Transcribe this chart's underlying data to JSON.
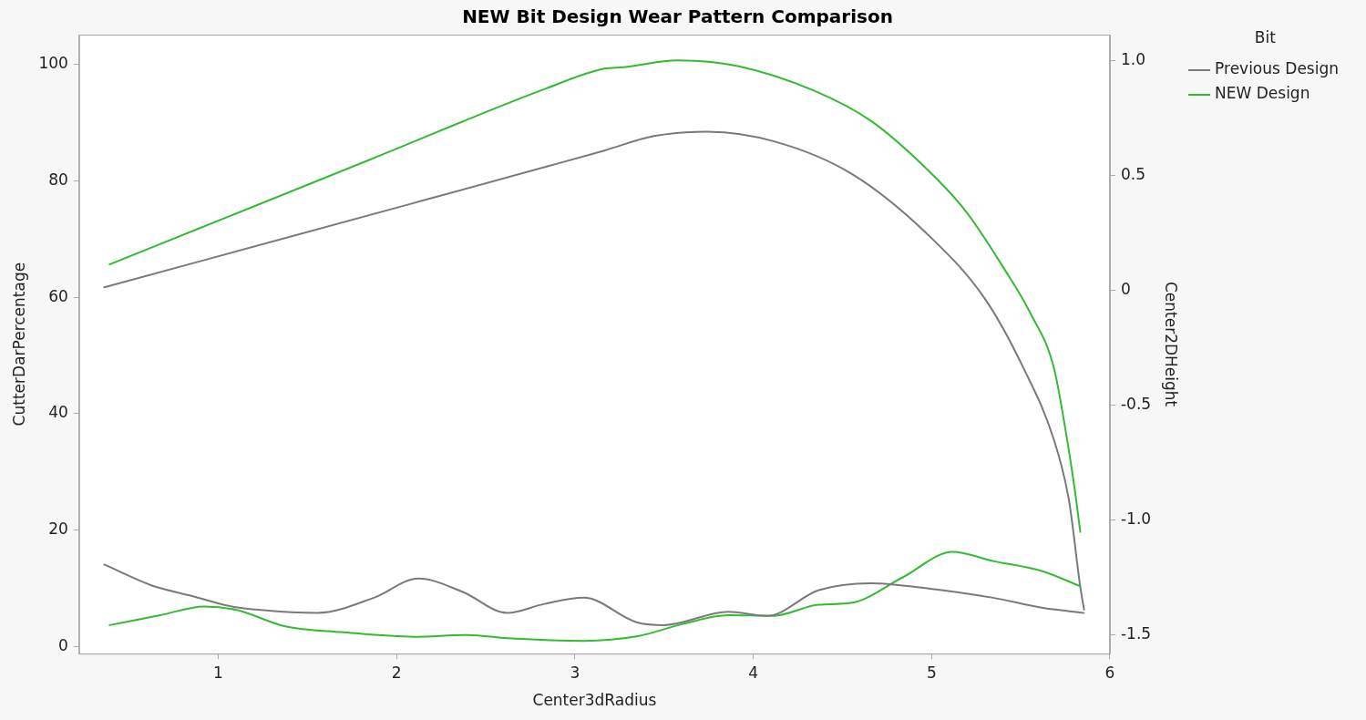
{
  "chart_data": {
    "type": "line",
    "title": "NEW Bit Design Wear Pattern Comparison",
    "xlabel": "Center3dRadius",
    "ylabel": "CutterDarPercentage",
    "y2label": "Center2DHeight",
    "legend_title": "Bit",
    "legend": "top right",
    "grid": false,
    "marker": "none",
    "line_style": "solid",
    "xlim": [
      0.22,
      6
    ],
    "xticks": [
      1,
      2,
      3,
      4,
      5,
      6
    ],
    "ylim": [
      -1.2,
      105.1
    ],
    "yticks": [
      0,
      20,
      40,
      60,
      80,
      100
    ],
    "y2lim": [
      -1.583,
      1.114
    ],
    "y2ticks": [
      {
        "value": -1.5,
        "label": "-1.5"
      },
      {
        "value": -1,
        "label": "-1.0"
      },
      {
        "value": -0.5,
        "label": "-0.5"
      },
      0,
      {
        "value": 0.5,
        "label": "0.5"
      },
      {
        "value": 1,
        "label": "1.0"
      }
    ],
    "series": [
      {
        "name": "Previous Design",
        "color": "#7a7a7a",
        "x": [
          0.361,
          0.628,
          0.854,
          1.058,
          1.239,
          1.556,
          1.873,
          2.122,
          2.371,
          2.62,
          2.824,
          3.05,
          3.345,
          3.498,
          3.86,
          4.078,
          4.367,
          4.657,
          4.983,
          5.345,
          5.617,
          5.853
        ],
        "values": [
          14.1,
          10.5,
          8.7,
          7.0,
          6.3,
          5.8,
          8.4,
          11.7,
          9.4,
          5.8,
          7.3,
          8.4,
          4.2,
          3.7,
          6.0,
          5.3,
          9.7,
          10.9,
          10.0,
          8.4,
          6.7,
          5.8
        ]
      },
      {
        "name": "NEW Design",
        "color": "#33bb33",
        "x": [
          0.391,
          0.674,
          0.922,
          1.103,
          1.375,
          1.692,
          2.1,
          2.394,
          2.643,
          3.05,
          3.353,
          3.606,
          3.86,
          4.113,
          4.367,
          4.548,
          4.838,
          5.118,
          5.345,
          5.617,
          5.832
        ],
        "values": [
          3.7,
          5.4,
          6.9,
          6.3,
          3.5,
          2.5,
          1.7,
          2.0,
          1.4,
          1.0,
          1.8,
          3.9,
          5.4,
          5.3,
          7.2,
          7.5,
          11.9,
          16.3,
          14.7,
          13.0,
          10.4
        ]
      },
      {
        "color": "#7a7a7a",
        "axis": "y2",
        "x": [
          0.361,
          2.057,
          2.846,
          3.165,
          3.443,
          3.742,
          4.126,
          4.553,
          4.98,
          5.3,
          5.513,
          5.685,
          5.77,
          5.834,
          5.855
        ],
        "values": [
          0.013,
          0.372,
          0.54,
          0.609,
          0.672,
          0.691,
          0.647,
          0.507,
          0.242,
          -0.038,
          -0.335,
          -0.649,
          -0.913,
          -1.293,
          -1.391
        ]
      },
      {
        "color": "#33bb33",
        "axis": "y2",
        "x": [
          0.391,
          1.862,
          2.838,
          3.165,
          3.273,
          3.572,
          3.913,
          4.34,
          4.66,
          4.98,
          5.194,
          5.407,
          5.557,
          5.685,
          5.749,
          5.802,
          5.834
        ],
        "values": [
          0.113,
          0.573,
          0.879,
          0.966,
          0.972,
          1.002,
          0.977,
          0.87,
          0.738,
          0.523,
          0.342,
          0.094,
          -0.104,
          -0.335,
          -0.599,
          -0.864,
          -1.053
        ]
      }
    ]
  }
}
